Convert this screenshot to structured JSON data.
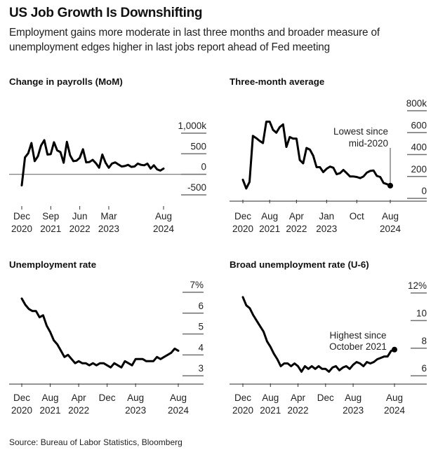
{
  "header": {
    "title": "US Job Growth Is Downshifting",
    "subtitle": "Employment gains more moderate in last three months and broader measure of unemployment edges higher in last jobs report ahead of Fed meeting"
  },
  "footer": {
    "source": "Source: Bureau of Labor Statistics, Bloomberg"
  },
  "colors": {
    "line": "#000000",
    "grid": "#707070",
    "text": "#222222"
  },
  "chart_data": [
    {
      "id": "payrolls",
      "type": "line",
      "title": "Change in payrolls (MoM)",
      "unit": "thousands",
      "x_range": [
        "2020-12",
        "2024-08"
      ],
      "ylim": [
        -500,
        1000
      ],
      "y_ticks": [
        {
          "v": 1000,
          "label": "1,000k"
        },
        {
          "v": 500,
          "label": "500"
        },
        {
          "v": 0,
          "label": "0"
        },
        {
          "v": -500,
          "label": "-500"
        }
      ],
      "zero_line": true,
      "x_ticks": [
        {
          "i": 0,
          "label": [
            "Dec",
            "2020"
          ]
        },
        {
          "i": 9,
          "label": [
            "Sep",
            "2021"
          ]
        },
        {
          "i": 18,
          "label": [
            "Jun",
            "2022"
          ]
        },
        {
          "i": 27,
          "label": [
            "Mar",
            "2023"
          ]
        },
        {
          "i": 44,
          "label": [
            "Aug",
            "2024"
          ]
        }
      ],
      "values": [
        -270,
        410,
        510,
        760,
        320,
        440,
        700,
        830,
        480,
        490,
        780,
        580,
        540,
        280,
        790,
        460,
        320,
        330,
        400,
        610,
        290,
        300,
        350,
        270,
        160,
        480,
        280,
        160,
        260,
        290,
        240,
        190,
        200,
        230,
        180,
        190,
        260,
        230,
        220,
        260,
        140,
        220,
        120,
        90,
        140
      ]
    },
    {
      "id": "three_month_avg",
      "type": "line",
      "title": "Three-month average",
      "unit": "thousands",
      "x_range": [
        "2020-12",
        "2024-08"
      ],
      "ylim": [
        0,
        800
      ],
      "y_ticks": [
        {
          "v": 800,
          "label": "800k"
        },
        {
          "v": 600,
          "label": "600"
        },
        {
          "v": 400,
          "label": "400"
        },
        {
          "v": 200,
          "label": "200"
        },
        {
          "v": 0,
          "label": "0"
        }
      ],
      "x_ticks": [
        {
          "i": 0,
          "label": [
            "Dec",
            "2020"
          ]
        },
        {
          "i": 8,
          "label": [
            "Aug",
            "2021"
          ]
        },
        {
          "i": 16,
          "label": [
            "Apr",
            "2022"
          ]
        },
        {
          "i": 25,
          "label": [
            "Jan",
            "2023"
          ]
        },
        {
          "i": 34,
          "label": [
            "Oct",
            ""
          ]
        },
        {
          "i": 44,
          "label": [
            "Aug",
            "2024"
          ]
        }
      ],
      "values": [
        170,
        90,
        150,
        570,
        550,
        525,
        505,
        700,
        700,
        625,
        600,
        650,
        675,
        470,
        560,
        545,
        545,
        350,
        320,
        460,
        445,
        390,
        285,
        285,
        240,
        270,
        290,
        280,
        220,
        230,
        260,
        230,
        200,
        200,
        195,
        185,
        200,
        235,
        250,
        255,
        205,
        195,
        140,
        130,
        116
      ],
      "annotation": {
        "text": [
          "Lowest since",
          "mid-2020"
        ],
        "index": 44,
        "marker": true
      }
    },
    {
      "id": "unemployment_rate",
      "type": "line",
      "title": "Unemployment rate",
      "unit": "percent",
      "x_range": [
        "2020-12",
        "2024-08"
      ],
      "ylim": [
        2.6,
        7.0
      ],
      "y_ticks": [
        {
          "v": 7,
          "label": "7%"
        },
        {
          "v": 6,
          "label": "6"
        },
        {
          "v": 5,
          "label": "5"
        },
        {
          "v": 4,
          "label": "4"
        },
        {
          "v": 3,
          "label": "3"
        }
      ],
      "x_ticks": [
        {
          "i": 0,
          "label": [
            "Dec",
            "2020"
          ]
        },
        {
          "i": 8,
          "label": [
            "Aug",
            "2021"
          ]
        },
        {
          "i": 16,
          "label": [
            "Apr",
            "2022"
          ]
        },
        {
          "i": 24,
          "label": [
            "Dec",
            ""
          ]
        },
        {
          "i": 32,
          "label": [
            "Aug",
            "2023"
          ]
        },
        {
          "i": 44,
          "label": [
            "Aug",
            "2024"
          ]
        }
      ],
      "values": [
        6.7,
        6.4,
        6.2,
        6.1,
        6.1,
        5.8,
        5.9,
        5.4,
        5.1,
        4.7,
        4.5,
        4.2,
        3.9,
        4.0,
        3.8,
        3.6,
        3.7,
        3.6,
        3.6,
        3.5,
        3.6,
        3.5,
        3.6,
        3.6,
        3.5,
        3.4,
        3.6,
        3.5,
        3.4,
        3.7,
        3.6,
        3.5,
        3.8,
        3.8,
        3.8,
        3.7,
        3.7,
        3.7,
        3.9,
        3.8,
        3.9,
        4.0,
        4.1,
        4.3,
        4.2
      ]
    },
    {
      "id": "u6_rate",
      "type": "line",
      "title": "Broad unemployment rate (U-6)",
      "unit": "percent",
      "x_range": [
        "2020-12",
        "2024-08"
      ],
      "ylim": [
        5.4,
        12.0
      ],
      "y_ticks": [
        {
          "v": 12,
          "label": "12%"
        },
        {
          "v": 10,
          "label": "10"
        },
        {
          "v": 8,
          "label": "8"
        },
        {
          "v": 6,
          "label": "6"
        }
      ],
      "x_ticks": [
        {
          "i": 0,
          "label": [
            "Dec",
            "2020"
          ]
        },
        {
          "i": 8,
          "label": [
            "Aug",
            "2021"
          ]
        },
        {
          "i": 16,
          "label": [
            "Apr",
            "2022"
          ]
        },
        {
          "i": 24,
          "label": [
            "Dec",
            ""
          ]
        },
        {
          "i": 32,
          "label": [
            "Aug",
            "2023"
          ]
        },
        {
          "i": 44,
          "label": [
            "Aug",
            "2024"
          ]
        }
      ],
      "values": [
        11.7,
        11.1,
        10.9,
        10.4,
        10.0,
        9.6,
        9.2,
        8.5,
        8.1,
        7.6,
        7.2,
        6.7,
        6.9,
        6.9,
        6.7,
        6.9,
        6.7,
        6.3,
        6.7,
        6.5,
        6.7,
        6.5,
        6.7,
        6.5,
        6.5,
        6.3,
        6.6,
        6.7,
        6.4,
        6.6,
        6.7,
        6.5,
        6.8,
        7.0,
        6.9,
        6.7,
        7.0,
        6.9,
        7.0,
        7.2,
        7.3,
        7.4,
        7.4,
        7.8,
        7.9
      ],
      "annotation": {
        "text": [
          "Highest since",
          "October 2021"
        ],
        "index": 44,
        "marker": true
      }
    }
  ]
}
